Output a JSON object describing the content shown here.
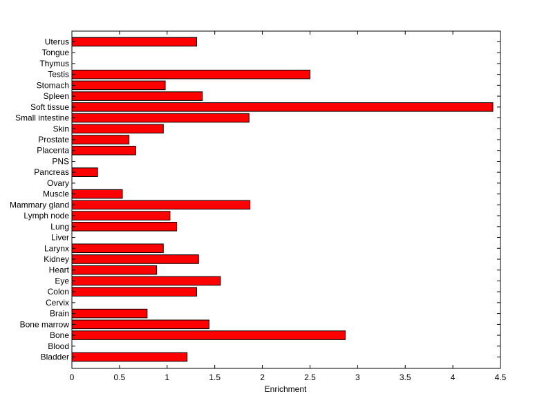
{
  "chart_data": {
    "type": "bar",
    "orientation": "horizontal",
    "title": "",
    "xlabel": "Enrichment",
    "ylabel": "",
    "xlim": [
      0,
      4.5
    ],
    "xticks": [
      0,
      0.5,
      1,
      1.5,
      2,
      2.5,
      3,
      3.5,
      4,
      4.5
    ],
    "xtick_labels": [
      "0",
      "0.5",
      "1",
      "1.5",
      "2",
      "2.5",
      "3",
      "3.5",
      "4",
      "4.5"
    ],
    "grid": false,
    "bar_color": "#ff0000",
    "bar_edge_color": "#000000",
    "categories": [
      "Bladder",
      "Blood",
      "Bone",
      "Bone marrow",
      "Brain",
      "Cervix",
      "Colon",
      "Eye",
      "Heart",
      "Kidney",
      "Larynx",
      "Liver",
      "Lung",
      "Lymph node",
      "Mammary gland",
      "Muscle",
      "Ovary",
      "Pancreas",
      "PNS",
      "Placenta",
      "Prostate",
      "Skin",
      "Small intestine",
      "Soft tissue",
      "Spleen",
      "Stomach",
      "Testis",
      "Thymus",
      "Tongue",
      "Uterus"
    ],
    "values": [
      1.21,
      0,
      2.87,
      1.44,
      0.79,
      0,
      1.31,
      1.56,
      0.89,
      1.33,
      0.96,
      0,
      1.1,
      1.03,
      1.87,
      0.53,
      0,
      0.27,
      0,
      0.67,
      0.6,
      0.96,
      1.86,
      4.42,
      1.37,
      0.98,
      2.5,
      0,
      0,
      1.31
    ]
  }
}
